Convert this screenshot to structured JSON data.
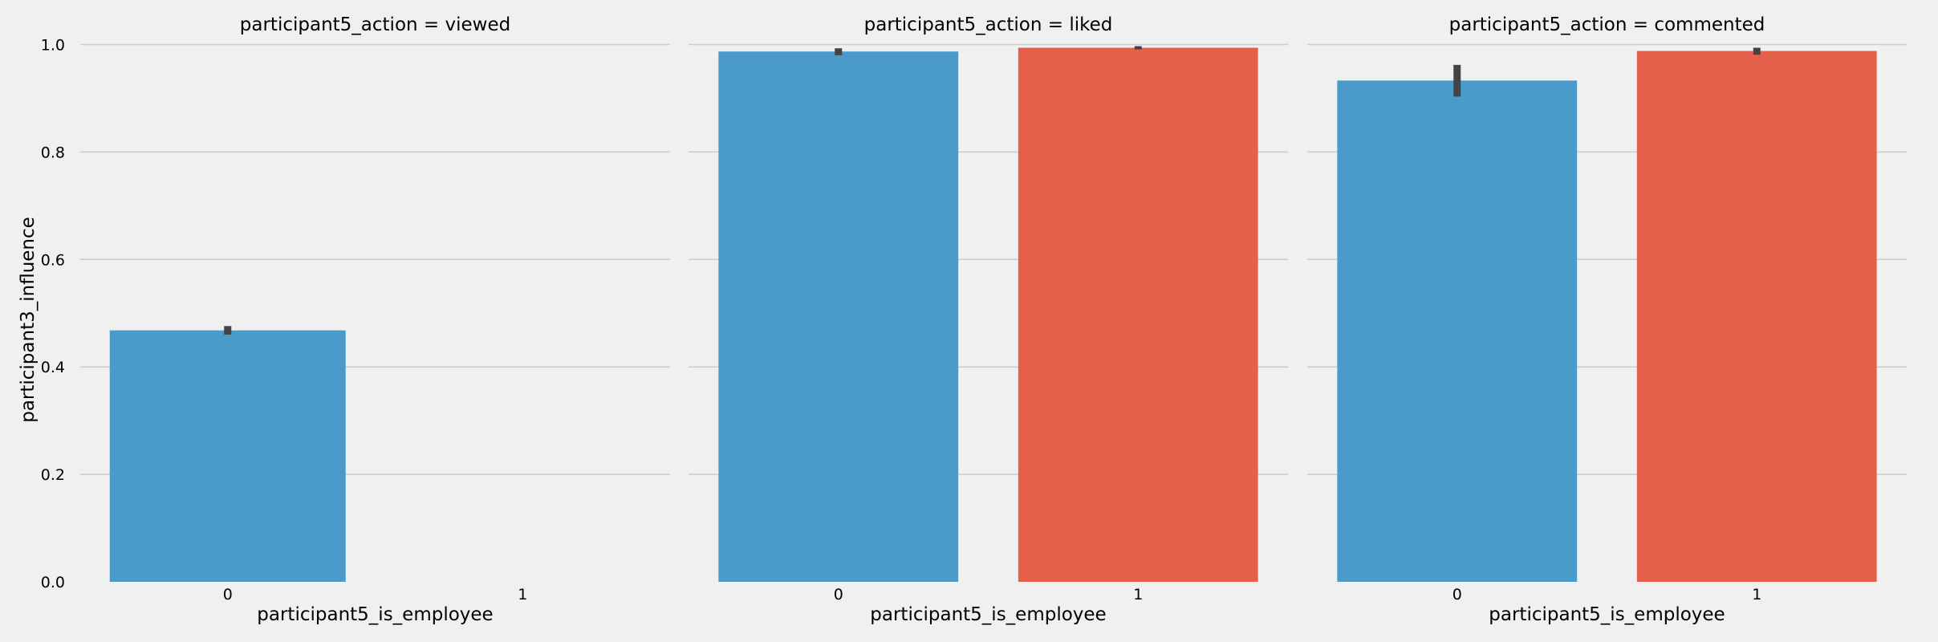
{
  "chart_data": {
    "type": "bar",
    "facet_variable": "participant5_action",
    "facets": [
      {
        "title": "participant5_action = viewed",
        "categories": [
          "0",
          "1"
        ],
        "values": [
          0.468,
          null
        ],
        "ci": [
          [
            0.46,
            0.476
          ],
          null
        ],
        "xlabel": "participant5_is_employee"
      },
      {
        "title": "participant5_action = liked",
        "categories": [
          "0",
          "1"
        ],
        "values": [
          0.987,
          0.994
        ],
        "ci": [
          [
            0.98,
            0.993
          ],
          [
            0.991,
            0.997
          ]
        ],
        "xlabel": "participant5_is_employee"
      },
      {
        "title": "participant5_action = commented",
        "categories": [
          "0",
          "1"
        ],
        "values": [
          0.933,
          0.988
        ],
        "ci": [
          [
            0.903,
            0.962
          ],
          [
            0.981,
            0.994
          ]
        ],
        "xlabel": "participant5_is_employee"
      }
    ],
    "ylabel": "participant3_influence",
    "ylim": [
      0,
      1.05
    ],
    "yticks": [
      "0.0",
      "0.2",
      "0.4",
      "0.6",
      "0.8",
      "1.0"
    ],
    "ytick_values": [
      0,
      0.2,
      0.4,
      0.6,
      0.8,
      1.0
    ],
    "grid": true,
    "colors": [
      "#4a9bc9",
      "#e5604a"
    ],
    "errorbar_color": "#444444",
    "background": "#f0f0f0"
  }
}
